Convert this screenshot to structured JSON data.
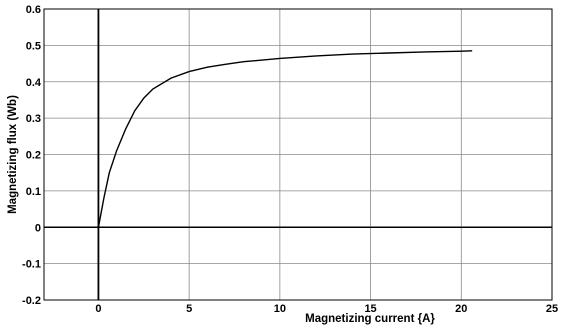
{
  "chart_data": {
    "type": "line",
    "xlabel": "Magnetizing current {A}",
    "ylabel": "Magnetizing flux (Wb)",
    "xlim": [
      -3,
      25
    ],
    "ylim": [
      -0.2,
      0.6
    ],
    "xticks": [
      0,
      5,
      10,
      15,
      20,
      25
    ],
    "yticks": [
      -0.2,
      -0.1,
      0,
      0.1,
      0.2,
      0.3,
      0.4,
      0.5,
      0.6
    ],
    "xtick_labels": [
      "0",
      "5",
      "10",
      "15",
      "20",
      "25"
    ],
    "ytick_labels": [
      "-0.2",
      "-0.1",
      "0",
      "0.1",
      "0.2",
      "0.3",
      "0.4",
      "0.5",
      "0.6"
    ],
    "grid": true,
    "series": [
      {
        "x": [
          0,
          0.3,
          0.6,
          1.0,
          1.5,
          2.0,
          2.5,
          3.0,
          4.0,
          5.0,
          6.0,
          7.0,
          8.0,
          10.0,
          12.0,
          14.0,
          16.0,
          18.0,
          20.0,
          20.6
        ],
        "y": [
          0,
          0.08,
          0.15,
          0.21,
          0.27,
          0.32,
          0.355,
          0.38,
          0.41,
          0.428,
          0.44,
          0.448,
          0.455,
          0.464,
          0.471,
          0.476,
          0.479,
          0.482,
          0.484,
          0.485
        ]
      }
    ]
  }
}
